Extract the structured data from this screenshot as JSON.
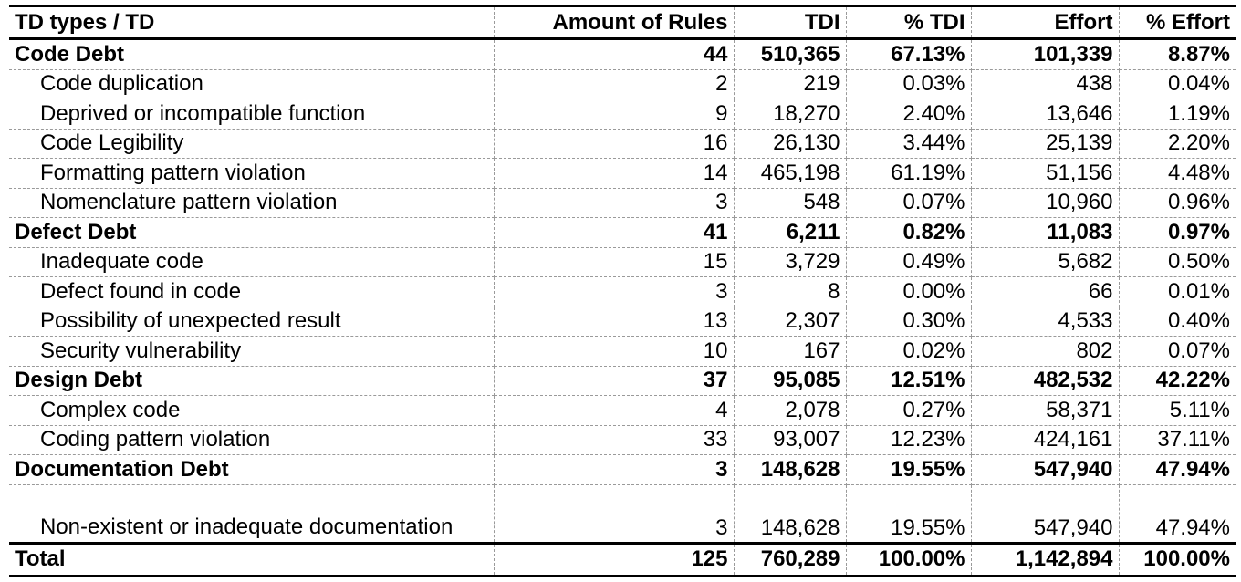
{
  "table": {
    "headers": [
      "TD types / TD",
      "Amount of Rules",
      "TDI",
      "% TDI",
      "Effort",
      "% Effort"
    ],
    "rows": [
      {
        "kind": "group",
        "cells": [
          "Code Debt",
          "44",
          "510,365",
          "67.13%",
          "101,339",
          "8.87%"
        ]
      },
      {
        "kind": "sub",
        "cells": [
          "Code duplication",
          "2",
          "219",
          "0.03%",
          "438",
          "0.04%"
        ]
      },
      {
        "kind": "sub",
        "cells": [
          "Deprived or incompatible function",
          "9",
          "18,270",
          "2.40%",
          "13,646",
          "1.19%"
        ]
      },
      {
        "kind": "sub",
        "cells": [
          "Code Legibility",
          "16",
          "26,130",
          "3.44%",
          "25,139",
          "2.20%"
        ]
      },
      {
        "kind": "sub",
        "cells": [
          "Formatting pattern violation",
          "14",
          "465,198",
          "61.19%",
          "51,156",
          "4.48%"
        ]
      },
      {
        "kind": "sub",
        "cells": [
          "Nomenclature pattern violation",
          "3",
          "548",
          "0.07%",
          "10,960",
          "0.96%"
        ]
      },
      {
        "kind": "group",
        "cells": [
          "Defect Debt",
          "41",
          "6,211",
          "0.82%",
          "11,083",
          "0.97%"
        ]
      },
      {
        "kind": "sub",
        "cells": [
          "Inadequate code",
          "15",
          "3,729",
          "0.49%",
          "5,682",
          "0.50%"
        ]
      },
      {
        "kind": "sub",
        "cells": [
          "Defect found in code",
          "3",
          "8",
          "0.00%",
          "66",
          "0.01%"
        ]
      },
      {
        "kind": "sub",
        "cells": [
          "Possibility of unexpected result",
          "13",
          "2,307",
          "0.30%",
          "4,533",
          "0.40%"
        ]
      },
      {
        "kind": "sub",
        "cells": [
          "Security vulnerability",
          "10",
          "167",
          "0.02%",
          "802",
          "0.07%"
        ]
      },
      {
        "kind": "group",
        "cells": [
          "Design Debt",
          "37",
          "95,085",
          "12.51%",
          "482,532",
          "42.22%"
        ]
      },
      {
        "kind": "sub",
        "cells": [
          "Complex code",
          "4",
          "2,078",
          "0.27%",
          "58,371",
          "5.11%"
        ]
      },
      {
        "kind": "sub",
        "cells": [
          "Coding pattern violation",
          "33",
          "93,007",
          "12.23%",
          "424,161",
          "37.11%"
        ]
      },
      {
        "kind": "group",
        "cells": [
          "Documentation Debt",
          "3",
          "148,628",
          "19.55%",
          "547,940",
          "47.94%"
        ]
      },
      {
        "kind": "sub-tall",
        "cells": [
          "Non-existent or inadequate documentation",
          "3",
          "148,628",
          "19.55%",
          "547,940",
          "47.94%"
        ]
      }
    ],
    "total": [
      "Total",
      "125",
      "760,289",
      "100.00%",
      "1,142,894",
      "100.00%"
    ]
  }
}
